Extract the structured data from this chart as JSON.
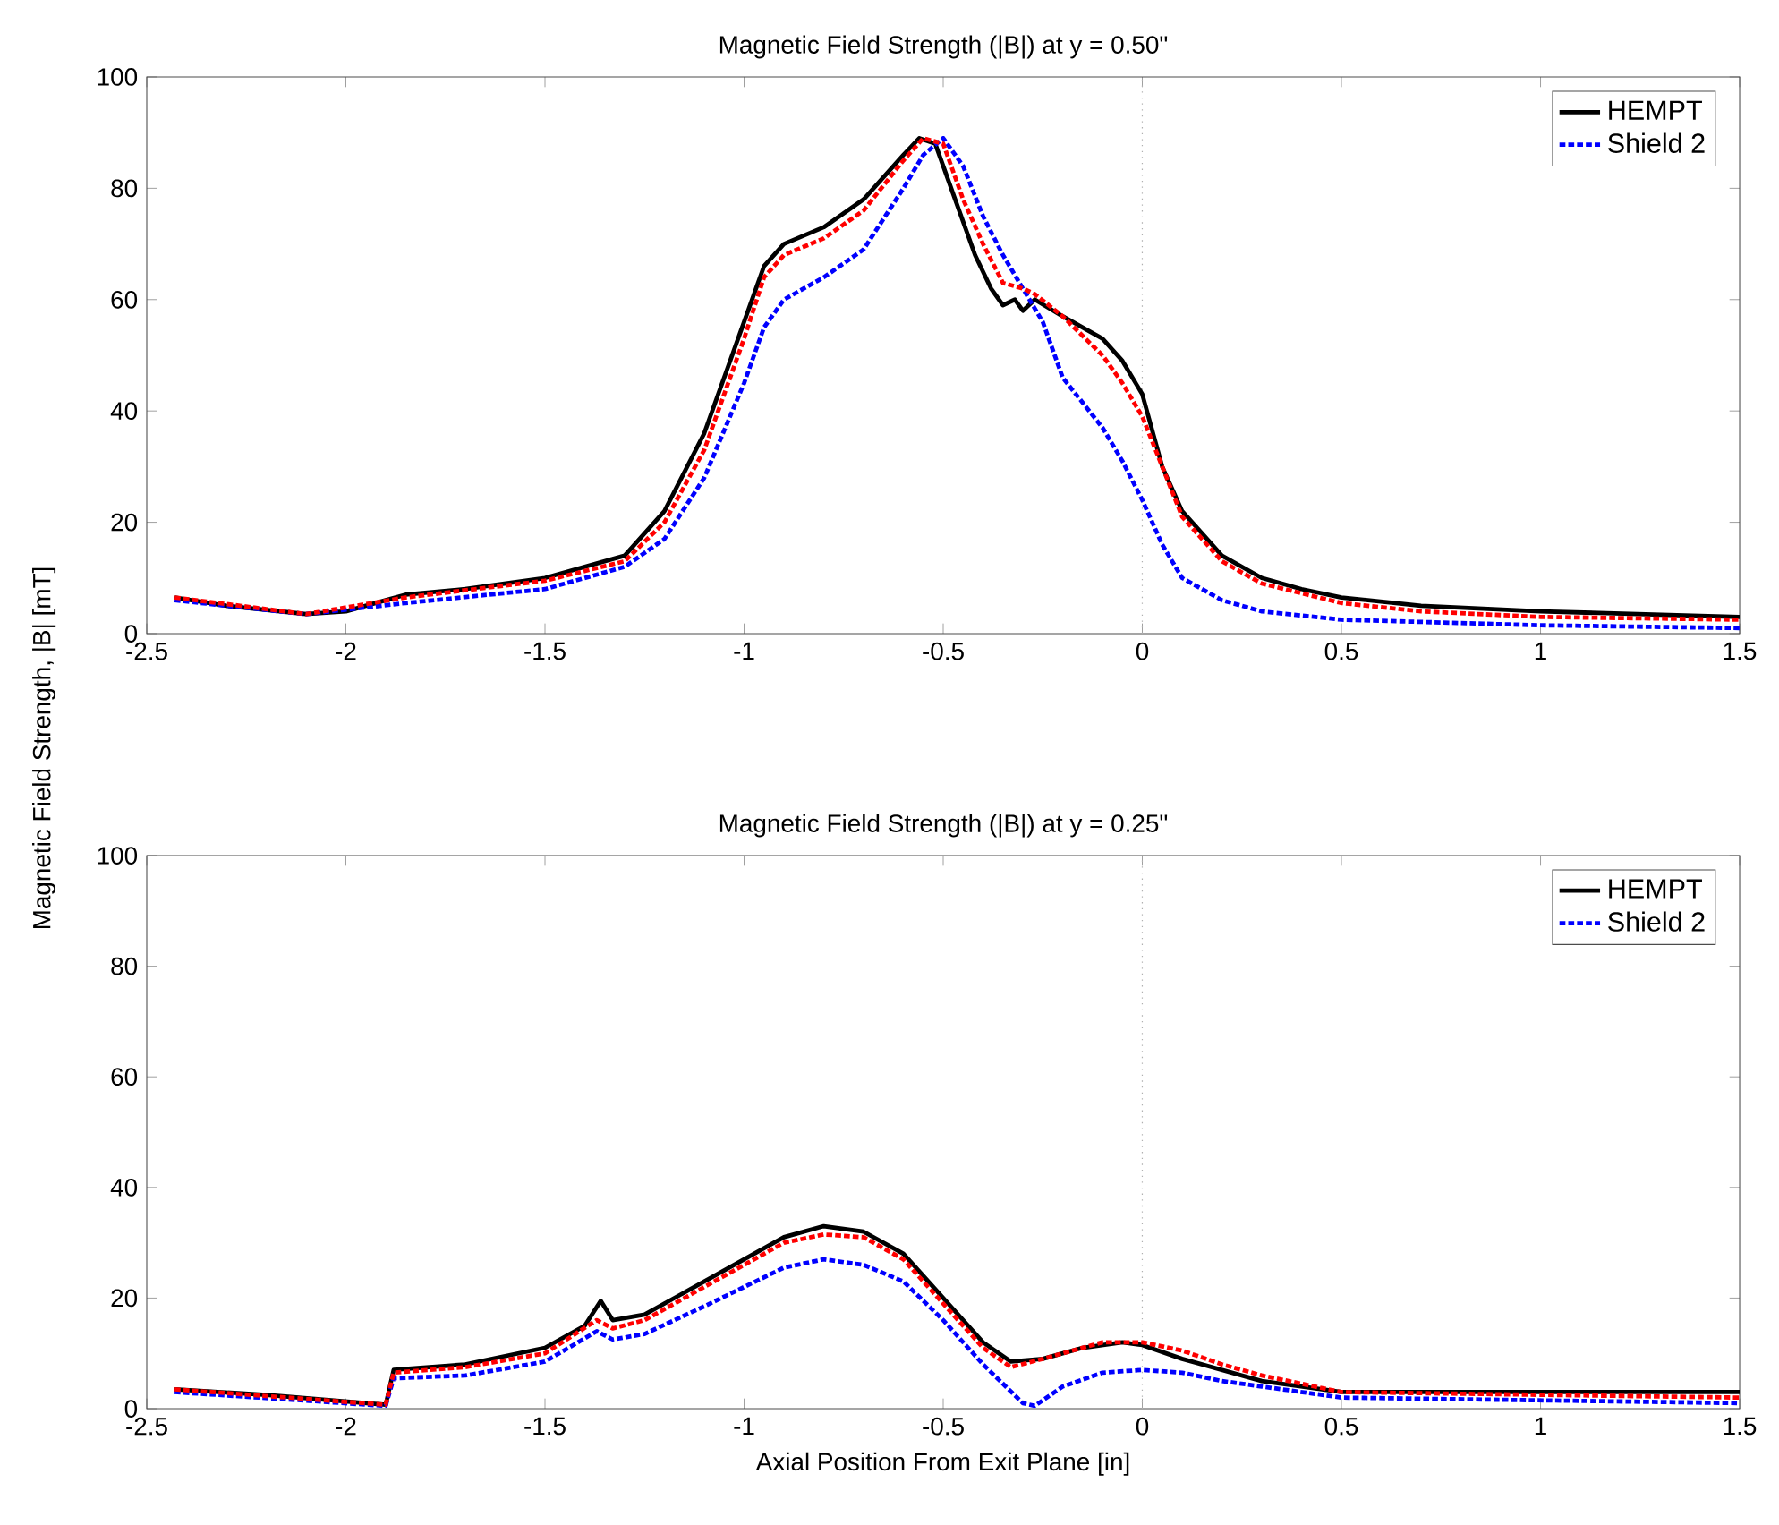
{
  "chart_data": [
    {
      "type": "line",
      "title": "Magnetic Field Strength (|B|) at y = 0.50\"",
      "ylabel": "Magnetic Field Strength, |B| [mT]",
      "xlim": [
        -2.5,
        1.5
      ],
      "ylim": [
        0,
        100
      ],
      "xticks": [
        -2.5,
        -2,
        -1.5,
        -1,
        -0.5,
        0,
        0.5,
        1,
        1.5
      ],
      "yticks": [
        0,
        20,
        40,
        60,
        80,
        100
      ],
      "legend": "top right",
      "grid": false,
      "marker": "none",
      "ref_lines": [
        {
          "axis": "x",
          "value": 0,
          "color": "#b0b0b0",
          "line_style": "dotted"
        }
      ],
      "series": [
        {
          "name": "HEMPT",
          "color": "#000000",
          "line_style": "solid",
          "x": [
            -2.43,
            -2.3,
            -2.1,
            -2,
            -1.9,
            -1.85,
            -1.7,
            -1.5,
            -1.3,
            -1.2,
            -1.1,
            -1.0,
            -0.95,
            -0.9,
            -0.8,
            -0.7,
            -0.6,
            -0.56,
            -0.52,
            -0.47,
            -0.42,
            -0.38,
            -0.35,
            -0.32,
            -0.3,
            -0.27,
            -0.2,
            -0.1,
            -0.05,
            0,
            0.05,
            0.1,
            0.2,
            0.3,
            0.4,
            0.5,
            0.7,
            1,
            1.5
          ],
          "values": [
            6.5,
            5,
            3.5,
            4,
            6,
            7,
            8,
            10,
            14,
            22,
            36,
            56,
            66,
            70,
            73,
            78,
            86,
            89,
            88,
            78,
            68,
            62,
            59,
            60,
            58,
            60,
            57,
            53,
            49,
            43,
            30,
            22,
            14,
            10,
            8,
            6.5,
            5,
            4,
            3
          ]
        },
        {
          "color": "#ff0000",
          "line_style": "dashed",
          "x": [
            -2.43,
            -2.1,
            -1.85,
            -1.5,
            -1.3,
            -1.2,
            -1.1,
            -1,
            -0.95,
            -0.9,
            -0.8,
            -0.7,
            -0.6,
            -0.55,
            -0.5,
            -0.45,
            -0.4,
            -0.35,
            -0.3,
            -0.27,
            -0.2,
            -0.1,
            -0.05,
            0,
            0.05,
            0.1,
            0.2,
            0.3,
            0.5,
            0.7,
            1,
            1.5
          ],
          "values": [
            6.5,
            3.5,
            6.5,
            9.5,
            13,
            20,
            33,
            53,
            64,
            68,
            71,
            76,
            85,
            89,
            88,
            78,
            70,
            63,
            62,
            61,
            57,
            50,
            45,
            39,
            30,
            21,
            13,
            9,
            5.5,
            4,
            3,
            2.5
          ]
        },
        {
          "name": "Shield 2",
          "color": "#0000ff",
          "line_style": "dashed",
          "x": [
            -2.43,
            -2.1,
            -1.85,
            -1.5,
            -1.3,
            -1.2,
            -1.1,
            -1,
            -0.95,
            -0.9,
            -0.8,
            -0.7,
            -0.6,
            -0.55,
            -0.5,
            -0.45,
            -0.4,
            -0.35,
            -0.3,
            -0.25,
            -0.2,
            -0.1,
            -0.05,
            0,
            0.05,
            0.1,
            0.2,
            0.3,
            0.5,
            1,
            1.5
          ],
          "values": [
            6,
            3.5,
            5.5,
            8,
            12,
            17,
            28,
            45,
            55,
            60,
            64,
            69,
            80,
            86,
            89,
            84,
            75,
            68,
            62,
            56,
            46,
            37,
            31,
            24,
            16,
            10,
            6,
            4,
            2.5,
            1.5,
            1
          ]
        }
      ]
    },
    {
      "type": "line",
      "title": "Magnetic Field Strength (|B|) at y = 0.25\"",
      "xlabel": "Axial Position From Exit Plane [in]",
      "xlim": [
        -2.5,
        1.5
      ],
      "ylim": [
        0,
        100
      ],
      "xticks": [
        -2.5,
        -2,
        -1.5,
        -1,
        -0.5,
        0,
        0.5,
        1,
        1.5
      ],
      "yticks": [
        0,
        20,
        40,
        60,
        80,
        100
      ],
      "legend": "top right",
      "grid": false,
      "marker": "none",
      "ref_lines": [
        {
          "axis": "x",
          "value": 0,
          "color": "#b0b0b0",
          "line_style": "dotted"
        }
      ],
      "series": [
        {
          "name": "HEMPT",
          "color": "#000000",
          "line_style": "solid",
          "x": [
            -2.43,
            -2.2,
            -1.9,
            -1.88,
            -1.7,
            -1.5,
            -1.4,
            -1.36,
            -1.33,
            -1.25,
            -1.1,
            -0.9,
            -0.8,
            -0.7,
            -0.6,
            -0.5,
            -0.4,
            -0.33,
            -0.25,
            -0.15,
            -0.05,
            0,
            0.1,
            0.2,
            0.3,
            0.5,
            1,
            1.5
          ],
          "values": [
            3.5,
            2.5,
            0.7,
            7,
            8,
            11,
            15,
            19.5,
            16,
            17,
            23,
            31,
            33,
            32,
            28,
            20,
            12,
            8.5,
            9,
            11,
            12,
            11.5,
            9,
            7,
            5,
            3,
            3,
            3
          ]
        },
        {
          "color": "#ff0000",
          "line_style": "dashed",
          "x": [
            -2.43,
            -1.9,
            -1.88,
            -1.7,
            -1.5,
            -1.37,
            -1.33,
            -1.25,
            -1.1,
            -0.9,
            -0.8,
            -0.7,
            -0.6,
            -0.5,
            -0.4,
            -0.33,
            -0.25,
            -0.1,
            0,
            0.1,
            0.2,
            0.3,
            0.5,
            1,
            1.5
          ],
          "values": [
            3.5,
            0.7,
            6.5,
            7.5,
            10,
            16,
            14.5,
            16,
            22,
            30,
            31.5,
            31,
            27,
            19,
            11,
            7.5,
            9,
            12,
            12,
            10.5,
            8,
            6,
            3,
            2.5,
            2
          ]
        },
        {
          "name": "Shield 2",
          "color": "#0000ff",
          "line_style": "dashed",
          "x": [
            -2.43,
            -1.9,
            -1.88,
            -1.7,
            -1.5,
            -1.37,
            -1.33,
            -1.25,
            -1.1,
            -0.9,
            -0.8,
            -0.7,
            -0.6,
            -0.5,
            -0.4,
            -0.3,
            -0.27,
            -0.2,
            -0.1,
            0,
            0.1,
            0.2,
            0.3,
            0.5,
            1,
            1.5
          ],
          "values": [
            3,
            0.5,
            5.5,
            6,
            8.5,
            14,
            12.5,
            13.5,
            18.5,
            25.5,
            27,
            26,
            23,
            16,
            8,
            1,
            0.5,
            4,
            6.5,
            7,
            6.5,
            5,
            4,
            2,
            1.5,
            1
          ]
        }
      ]
    }
  ]
}
